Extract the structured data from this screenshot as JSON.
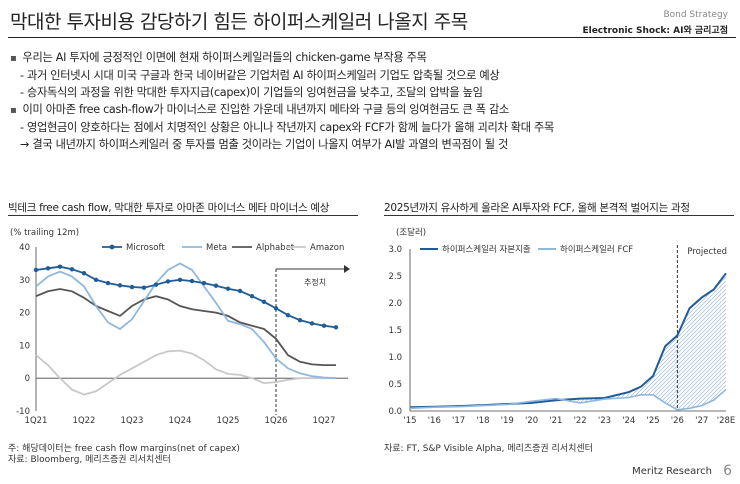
{
  "header": {
    "title": "막대한 투자비용 감당하기 힘든 하이퍼스케일러 나올지 주목",
    "tag_top": "Bond Strategy",
    "tag_bottom": "Electronic Shock: AI와 금리고점"
  },
  "bullets": {
    "b1": "우리는 AI 투자에 긍정적인 이면에 현재 하이퍼스케일러들의 chicken-game 부작용 주목",
    "b1_s1": "- 과거 인터넷시 시대 미국 구글과 한국 네이버같은 기업처럼 AI 하이퍼스케일러 기업도 압축될 것으로 예상",
    "b1_s2": "- 승자독식의 과정을 위한 막대한 투자지급(capex)이 기업들의 잉여현금을 낮추고, 조달의 압박을 높임",
    "b2": "이미 아마존 free cash-flow가 마이너스로 진입한 가운데 내년까지 메타와 구글 등의 잉여현금도 큰 폭 감소",
    "b2_s1": "- 영업현금이 양호하다는 점에서 치명적인 상황은 아니나 작년까지 capex와 FCF가 함께 늘다가 올해 괴리차 확대 주목",
    "b2_s2": "결국 내년까지 하이퍼스케일러 중 투자를 멈출 것이라는 기업이 나올지 여부가 AI발 과열의 변곡점이 될 것",
    "arrow": "→"
  },
  "left_chart": {
    "title": "빅테크 free cash flow, 막대한 투자로 아마존 마이너스 메타 마이너스 예상",
    "footnote": "주: 해당데이터는 free cash flow margins(net of capex)",
    "source": "자료: Bloomberg, 메리츠증권 리서치센터"
  },
  "right_chart": {
    "title": "2025년까지 유사하게 올라온 AI투자와 FCF, 올해 본격적 벌어지는 과정",
    "source": "자료: FT, S&P Visible Alpha, 메리츠증권 리서치센터"
  },
  "footer": {
    "brand": "Meritz Research",
    "page": "6"
  },
  "colors": {
    "dark_blue": "#1f5c99",
    "light_blue": "#8fb8e0",
    "dark_gray": "#555555",
    "light_gray": "#c8c8c8",
    "fill": "#c9d9ec"
  },
  "chart_data": [
    {
      "type": "line",
      "unit_label": "(% trailing 12m)",
      "x_ticks": [
        "1Q21",
        "1Q22",
        "1Q23",
        "1Q24",
        "1Q25",
        "1Q26",
        "1Q27"
      ],
      "x_range": [
        0,
        26
      ],
      "ylim": [
        -10,
        40
      ],
      "y_ticks": [
        -10,
        0,
        10,
        20,
        30,
        40
      ],
      "annotation": "추정치",
      "forecast_start_x": 20,
      "series": [
        {
          "name": "Microsoft",
          "color": "#1f5c99",
          "marker": true,
          "x": [
            0,
            1,
            2,
            3,
            4,
            5,
            6,
            7,
            8,
            9,
            10,
            11,
            12,
            13,
            14,
            15,
            16,
            17,
            18,
            19,
            20,
            21,
            22,
            23,
            24,
            25
          ],
          "y": [
            33,
            33.5,
            34,
            33.2,
            32,
            30,
            29,
            28.3,
            27.8,
            27.6,
            28.5,
            29.5,
            30,
            29.6,
            29,
            28.2,
            27.3,
            26.6,
            25,
            23.3,
            21.3,
            19.2,
            17.7,
            16.7,
            16,
            15.5
          ]
        },
        {
          "name": "Meta",
          "color": "#8fb8e0",
          "marker": false,
          "x": [
            0,
            1,
            2,
            3,
            4,
            5,
            6,
            7,
            8,
            9,
            10,
            11,
            12,
            13,
            14,
            15,
            16,
            17,
            18,
            19,
            20,
            21,
            22,
            23,
            24,
            25
          ],
          "y": [
            28,
            31,
            32.5,
            31,
            28,
            22,
            17,
            15,
            18,
            23.5,
            29,
            33,
            35,
            33,
            28,
            23,
            17.5,
            16.5,
            15,
            11,
            6,
            3,
            1.5,
            0.6,
            0.2,
            0
          ]
        },
        {
          "name": "Alphabet",
          "color": "#555555",
          "marker": false,
          "x": [
            0,
            1,
            2,
            3,
            4,
            5,
            6,
            7,
            8,
            9,
            10,
            11,
            12,
            13,
            14,
            15,
            16,
            17,
            18,
            19,
            20,
            21,
            22,
            23,
            24,
            25
          ],
          "y": [
            25,
            26.5,
            27.2,
            26.5,
            24.5,
            22,
            20.5,
            19,
            22,
            24,
            25,
            24,
            22,
            21,
            20.5,
            20,
            19,
            17,
            16,
            15,
            12,
            7,
            5,
            4.2,
            4,
            4
          ]
        },
        {
          "name": "Amazon",
          "color": "#c8c8c8",
          "marker": false,
          "x": [
            0,
            1,
            2,
            3,
            4,
            5,
            6,
            7,
            8,
            9,
            10,
            11,
            12,
            13,
            14,
            15,
            16,
            17,
            18,
            19,
            20,
            21,
            22,
            23,
            24,
            25
          ],
          "y": [
            7,
            4,
            0,
            -3.5,
            -5,
            -4,
            -1.5,
            1,
            3,
            5,
            7,
            8.2,
            8.4,
            7.5,
            5.5,
            2.7,
            1.3,
            1,
            0,
            -1.5,
            -1.2,
            -0.5,
            0,
            0,
            0,
            0
          ]
        }
      ]
    },
    {
      "type": "area",
      "unit_label": "(조달러)",
      "x_ticks": [
        "'15",
        "'16",
        "'17",
        "'18",
        "'19",
        "'20",
        "'21",
        "'22",
        "'23",
        "'24",
        "'25",
        "'26",
        "'27",
        "'28E"
      ],
      "x_range": [
        2015,
        2028
      ],
      "ylim": [
        0,
        3.0
      ],
      "y_ticks": [
        0.0,
        0.5,
        1.0,
        1.5,
        2.0,
        2.5,
        3.0
      ],
      "annotation": "Projected",
      "forecast_start_x": 2026,
      "series": [
        {
          "name": "하이퍼스케일러 자본지출",
          "color": "#1f5c99",
          "x": [
            2015,
            2016,
            2017,
            2018,
            2019,
            2020,
            2021,
            2022,
            2023,
            2024,
            2024.5,
            2025,
            2025.5,
            2026,
            2026.5,
            2027,
            2027.5,
            2028
          ],
          "y": [
            0.07,
            0.08,
            0.09,
            0.11,
            0.13,
            0.15,
            0.2,
            0.23,
            0.24,
            0.35,
            0.45,
            0.65,
            1.2,
            1.4,
            1.9,
            2.1,
            2.25,
            2.55
          ]
        },
        {
          "name": "하이퍼스케일러 FCF",
          "color": "#8fb8e0",
          "x": [
            2015,
            2016,
            2017,
            2018,
            2019,
            2020,
            2021,
            2022,
            2023,
            2024,
            2024.5,
            2025,
            2025.5,
            2026,
            2026.5,
            2027,
            2027.5,
            2028
          ],
          "y": [
            0.05,
            0.07,
            0.08,
            0.1,
            0.12,
            0.18,
            0.23,
            0.15,
            0.22,
            0.25,
            0.3,
            0.3,
            0.15,
            0.02,
            0.05,
            0.1,
            0.2,
            0.4
          ]
        }
      ]
    }
  ]
}
